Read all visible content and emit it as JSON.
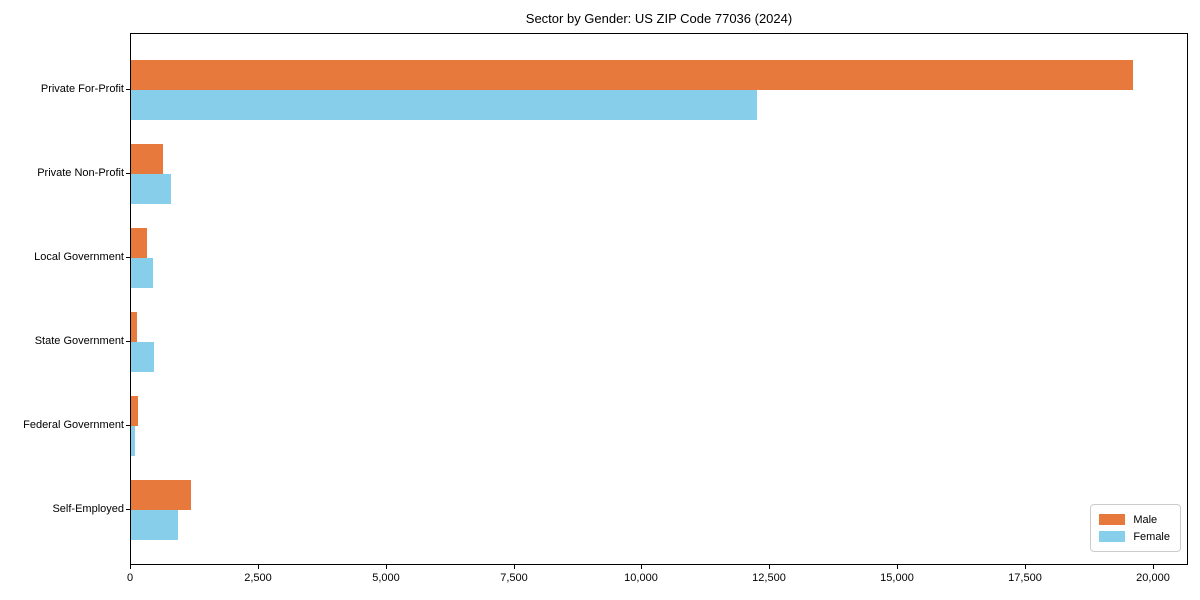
{
  "title": "Sector by Gender: US ZIP Code 77036 (2024)",
  "chart_data": {
    "type": "bar",
    "orientation": "horizontal",
    "title": "Sector by Gender: US ZIP Code 77036 (2024)",
    "categories": [
      "Private For-Profit",
      "Private Non-Profit",
      "Local Government",
      "State Government",
      "Federal Government",
      "Self-Employed"
    ],
    "series": [
      {
        "name": "Male",
        "color": "#E8793C",
        "values": [
          19600,
          620,
          310,
          120,
          140,
          1180
        ]
      },
      {
        "name": "Female",
        "color": "#87CEEB",
        "values": [
          12250,
          790,
          430,
          440,
          80,
          910
        ]
      }
    ],
    "xlabel": "",
    "ylabel": "",
    "xlim": [
      0,
      20650
    ],
    "xticks": [
      0,
      2500,
      5000,
      7500,
      10000,
      12500,
      15000,
      17500,
      20000
    ],
    "xtick_labels": [
      "0",
      "2,500",
      "5,000",
      "7,500",
      "10,000",
      "12,500",
      "15,000",
      "17,500",
      "20,000"
    ],
    "grid": false,
    "legend": {
      "position": "lower right",
      "entries": [
        "Male",
        "Female"
      ]
    }
  }
}
